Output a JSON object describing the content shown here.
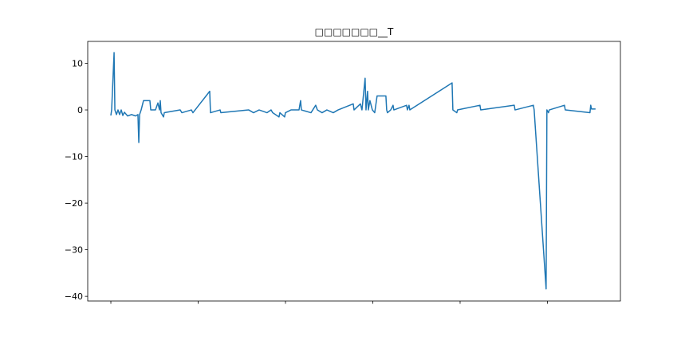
{
  "chart_data": {
    "type": "line",
    "title": "□□□□□□□__T",
    "x": [
      0,
      9,
      37,
      46,
      64,
      82,
      100,
      119,
      137,
      155,
      192,
      237,
      283,
      310,
      320,
      329,
      347,
      374,
      447,
      457,
      511,
      539,
      557,
      566,
      575,
      603,
      612,
      794,
      813,
      922,
      940,
      1132,
      1141,
      1251,
      1260,
      1579,
      1634,
      1698,
      1789,
      1835,
      1853,
      1926,
      1936,
      1990,
      1999,
      2063,
      2155,
      2173,
      2182,
      2292,
      2346,
      2365,
      2419,
      2474,
      2547,
      2602,
      2776,
      2785,
      2858,
      2876,
      2912,
      2922,
      2940,
      2949,
      2967,
      2995,
      3022,
      3049,
      3150,
      3159,
      3168,
      3205,
      3232,
      3241,
      3387,
      3396,
      3415,
      3424,
      3908,
      3917,
      3962,
      3971,
      4227,
      4236,
      4620,
      4629,
      4839,
      4848,
      4985,
      4994,
      5012,
      5021,
      5195,
      5204,
      5487,
      5496,
      5505,
      5551
    ],
    "series": [
      {
        "color": "#1f77b4",
        "values": [
          -1.2,
          0,
          12.3,
          0,
          -1,
          0,
          -1,
          0,
          -1.2,
          -0.5,
          -1.3,
          -1,
          -1.3,
          -1,
          -7,
          -1,
          0,
          2,
          2,
          0,
          0,
          1.5,
          0,
          2,
          -0.6,
          -1.5,
          -0.6,
          0,
          -0.6,
          0,
          -0.6,
          4,
          -0.6,
          0,
          -0.6,
          0,
          -0.6,
          0,
          -0.6,
          0,
          -0.6,
          -1.5,
          -0.6,
          -1.5,
          -0.6,
          0,
          0,
          2,
          0,
          -0.6,
          1,
          0,
          -0.6,
          0,
          -0.6,
          0,
          1.3,
          0,
          1.3,
          0,
          6.8,
          0,
          4,
          0,
          2,
          0,
          -0.6,
          3,
          3,
          0,
          -0.6,
          0,
          1,
          0,
          1,
          0,
          1,
          0,
          5.8,
          0,
          -0.6,
          0,
          1,
          0,
          1,
          0,
          1,
          0,
          -38.4,
          0,
          -0.6,
          0,
          1,
          0,
          -0.6,
          1,
          0.2,
          0.2
        ]
      }
    ],
    "xlim": [
      -265,
      5836
    ],
    "xticks": [
      0,
      1000,
      2000,
      3000,
      4000,
      5000
    ],
    "ylim": [
      -41,
      14.7
    ],
    "yticks": [
      {
        "value": -40,
        "label": "−40"
      },
      {
        "value": -30,
        "label": "−30"
      },
      {
        "value": -20,
        "label": "−20"
      },
      {
        "value": -10,
        "label": "−10"
      },
      0,
      10
    ],
    "grid": false
  }
}
